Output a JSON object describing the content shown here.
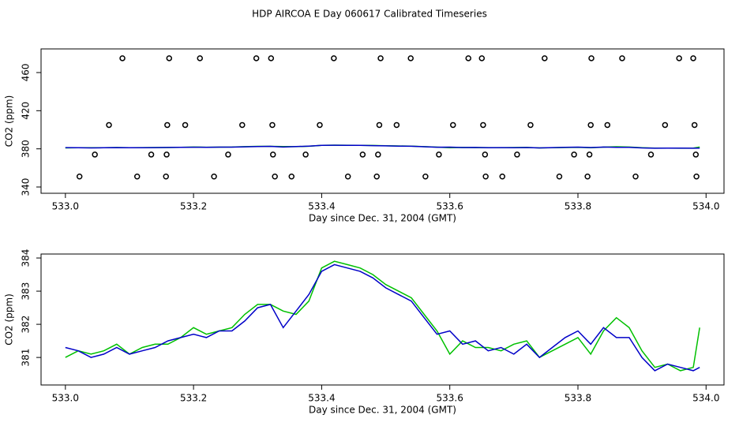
{
  "chart_data": [
    {
      "type": "scatter",
      "title": "HDP AIRCOA E  Day 060617  Calibrated Timeseries",
      "x_label": "Day since Dec. 31, 2004 (GMT)",
      "y_label": "CO2 (ppm)",
      "xlim": [
        532.962,
        534.028
      ],
      "ylim": [
        333.4,
        484.8
      ],
      "xticks": [
        {
          "value": 533.0,
          "label": "533.0"
        },
        533.2,
        533.4,
        533.6,
        533.8,
        {
          "value": 534.0,
          "label": "534.0"
        }
      ],
      "yticks": [
        340,
        380,
        420,
        460
      ],
      "series": [
        {
          "color": "#000000",
          "x": [
            533.089,
            533.162,
            533.21,
            533.298,
            533.321,
            533.419,
            533.492,
            533.539,
            533.629,
            533.65,
            533.748,
            533.821,
            533.869,
            533.958,
            533.98,
            533.068,
            533.159,
            533.187,
            533.276,
            533.323,
            533.397,
            533.49,
            533.517,
            533.605,
            533.652,
            533.726,
            533.82,
            533.846,
            533.936,
            533.982,
            533.046,
            533.134,
            533.158,
            533.254,
            533.324,
            533.375,
            533.464,
            533.488,
            533.583,
            533.655,
            533.705,
            533.794,
            533.818,
            533.914,
            533.984,
            533.022,
            533.112,
            533.157,
            533.232,
            533.327,
            533.353,
            533.441,
            533.486,
            533.562,
            533.656,
            533.682,
            533.771,
            533.815,
            533.89,
            533.985
          ],
          "values": [
            475,
            475,
            475,
            475,
            475,
            475,
            475,
            475,
            475,
            475,
            475,
            475,
            475,
            475,
            475,
            405,
            405,
            405,
            405,
            405,
            405,
            405,
            405,
            405,
            405,
            405,
            405,
            405,
            405,
            405,
            374,
            374,
            374,
            374,
            374,
            374,
            374,
            374,
            374,
            374,
            374,
            374,
            374,
            374,
            374,
            351,
            351,
            351,
            351,
            351,
            351,
            351,
            351,
            351,
            351,
            351,
            351,
            351,
            351,
            351
          ]
        }
      ]
    },
    {
      "type": "line",
      "x_label": "Day since Dec. 31, 2004 (GMT)",
      "y_label": "CO2 (ppm)",
      "xlim": [
        532.962,
        534.028
      ],
      "ylim": [
        380.17,
        384.12
      ],
      "xticks": [
        {
          "value": 533.0,
          "label": "533.0"
        },
        533.2,
        533.4,
        533.6,
        533.8,
        {
          "value": 534.0,
          "label": "534.0"
        }
      ],
      "yticks": [
        381,
        382,
        383,
        384
      ],
      "x": [
        533.0,
        533.02,
        533.04,
        533.06,
        533.08,
        533.1,
        533.12,
        533.14,
        533.16,
        533.18,
        533.2,
        533.22,
        533.24,
        533.26,
        533.28,
        533.3,
        533.32,
        533.34,
        533.36,
        533.38,
        533.4,
        533.42,
        533.44,
        533.46,
        533.48,
        533.5,
        533.52,
        533.54,
        533.56,
        533.58,
        533.6,
        533.62,
        533.64,
        533.66,
        533.68,
        533.7,
        533.72,
        533.74,
        533.76,
        533.78,
        533.8,
        533.82,
        533.84,
        533.86,
        533.88,
        533.9,
        533.92,
        533.94,
        533.96,
        533.98,
        533.99
      ],
      "series": [
        {
          "color": "#00c000",
          "values": [
            381.0,
            381.2,
            381.1,
            381.2,
            381.4,
            381.1,
            381.3,
            381.4,
            381.4,
            381.6,
            381.9,
            381.7,
            381.8,
            381.9,
            382.3,
            382.6,
            382.6,
            382.4,
            382.3,
            382.7,
            383.7,
            383.9,
            383.8,
            383.7,
            383.5,
            383.2,
            383.0,
            382.8,
            382.3,
            381.8,
            381.1,
            381.5,
            381.3,
            381.3,
            381.2,
            381.4,
            381.5,
            381.0,
            381.2,
            381.4,
            381.6,
            381.1,
            381.8,
            382.2,
            381.9,
            381.2,
            380.7,
            380.8,
            380.6,
            380.7,
            381.9
          ]
        },
        {
          "color": "#0000c8",
          "values": [
            381.3,
            381.2,
            381.0,
            381.1,
            381.3,
            381.1,
            381.2,
            381.3,
            381.5,
            381.6,
            381.7,
            381.6,
            381.8,
            381.8,
            382.1,
            382.5,
            382.6,
            381.9,
            382.4,
            382.9,
            383.6,
            383.8,
            383.7,
            383.6,
            383.4,
            383.1,
            382.9,
            382.7,
            382.2,
            381.7,
            381.8,
            381.4,
            381.5,
            381.2,
            381.3,
            381.1,
            381.4,
            381.0,
            381.3,
            381.6,
            381.8,
            381.4,
            381.9,
            381.6,
            381.6,
            381.0,
            380.6,
            380.8,
            380.7,
            380.6,
            380.7
          ]
        }
      ]
    }
  ]
}
